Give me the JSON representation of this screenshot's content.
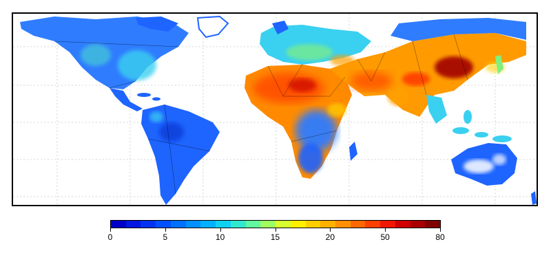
{
  "colorbar": {
    "ticks": [
      "0",
      "5",
      "10",
      "15",
      "20",
      "50",
      "80"
    ],
    "colors": [
      "#0000c8",
      "#0018e0",
      "#0034f0",
      "#0050ff",
      "#0070ff",
      "#0090ff",
      "#00b0ff",
      "#10d0f0",
      "#30e8d0",
      "#60f8a0",
      "#a0ff60",
      "#d8ff30",
      "#fff000",
      "#ffd000",
      "#ffb000",
      "#ff9000",
      "#ff6800",
      "#ff4000",
      "#f01800",
      "#d00000",
      "#a80000",
      "#800000"
    ]
  },
  "map": {
    "colors": {
      "land_low": "#1e64ff",
      "land_mid": "#3ad0f0",
      "land_greenish": "#80f080",
      "land_high": "#ffa000",
      "land_very_high": "#ff5000",
      "land_max": "#a00000",
      "ocean": "#ffffff",
      "border": "#000000",
      "grid": "#c8c8c8"
    }
  }
}
